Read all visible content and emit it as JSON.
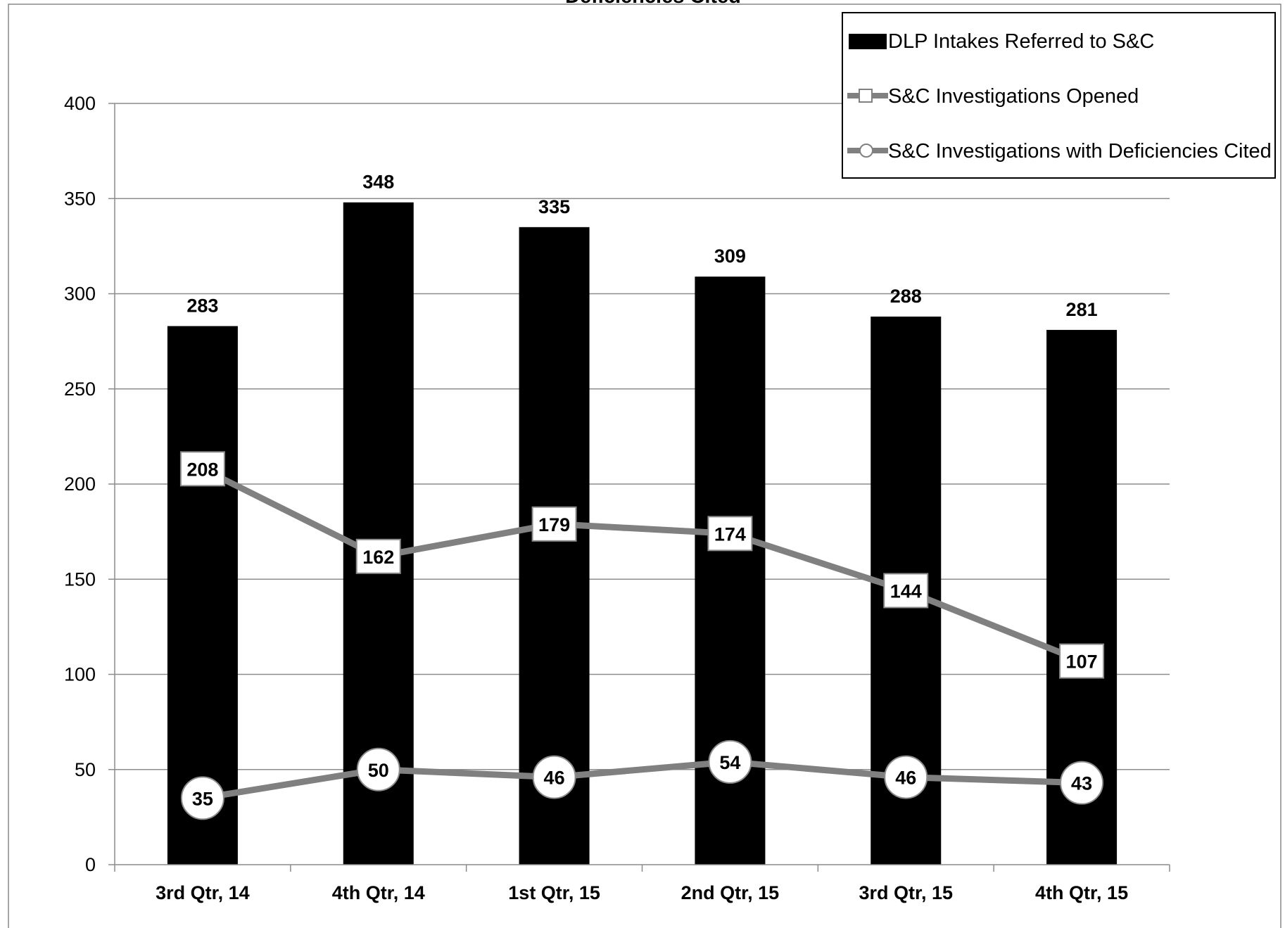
{
  "chart_data": {
    "type": "bar",
    "title": "Deficiencies Cited",
    "categories": [
      "3rd Qtr, 14",
      "4th Qtr, 14",
      "1st Qtr, 15",
      "2nd Qtr, 15",
      "3rd Qtr, 15",
      "4th Qtr, 15"
    ],
    "series": [
      {
        "name": "DLP Intakes Referred to S&C",
        "type": "bar",
        "color": "#000000",
        "values": [
          283,
          348,
          335,
          309,
          288,
          281
        ]
      },
      {
        "name": "S&C Investigations Opened",
        "type": "line",
        "marker": "square",
        "color": "#808080",
        "values": [
          208,
          162,
          179,
          174,
          144,
          107
        ]
      },
      {
        "name": "S&C Investigations with Deficiencies Cited",
        "type": "line",
        "marker": "circle",
        "color": "#808080",
        "values": [
          35,
          50,
          46,
          54,
          46,
          43
        ]
      }
    ],
    "yticks": [
      "0",
      "50",
      "100",
      "150",
      "200",
      "250",
      "300",
      "350",
      "400"
    ],
    "ylim": [
      0,
      400
    ],
    "grid": true,
    "legend_position": "top-right",
    "data_labels": true
  }
}
